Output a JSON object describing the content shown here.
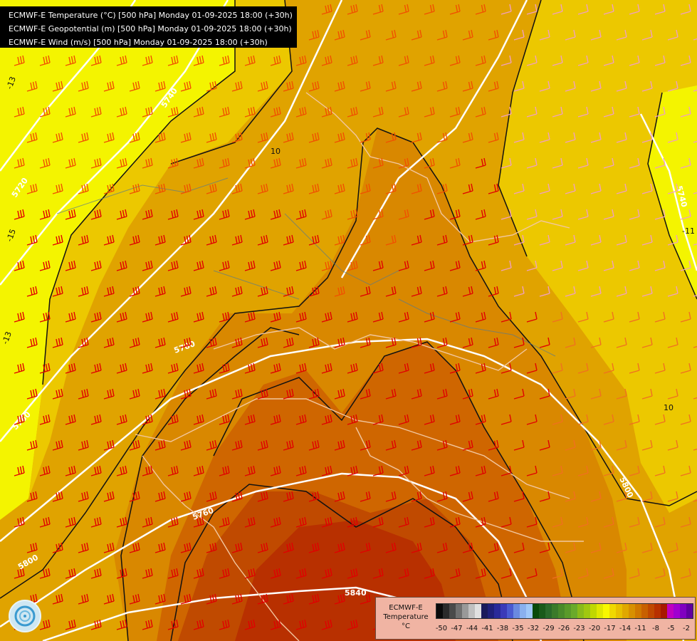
{
  "title_lines": [
    "ECMWF-E Temperature (°C) [500 hPa] Monday 01-09-2025 18:00 (+30h)",
    "ECMWF-E Geopotential (m) [500 hPa] Monday 01-09-2025 18:00 (+30h)",
    "ECMWF-E Wind (m/s) [500 hPa] Monday 01-09-2025 18:00 (+30h)"
  ],
  "geopotential_labels": [
    "5720",
    "5740",
    "5760",
    "5780",
    "5800",
    "5840",
    "5800",
    "5740",
    "5760"
  ],
  "isotherm_labels": [
    "10",
    "10",
    "-13",
    "-15",
    "-11",
    "-13"
  ],
  "legend": {
    "title_line1": "ECMWF-E",
    "title_line2": "Temperature",
    "unit": "°C",
    "tick_labels": [
      "-50",
      "-47",
      "-44",
      "-41",
      "-38",
      "-35",
      "-32",
      "-29",
      "-26",
      "-23",
      "-20",
      "-17",
      "-14",
      "-11",
      "-8",
      "-5",
      "-2"
    ],
    "colors": [
      "#0a0a0a",
      "#2a2a2a",
      "#4a4a4a",
      "#707070",
      "#999999",
      "#c0c0c0",
      "#e0e0e0",
      "#1a1a5a",
      "#20207a",
      "#2a2a9a",
      "#3a3ab8",
      "#4a5ad0",
      "#6a8ae0",
      "#8ab0ee",
      "#a0c8f8",
      "#0a4a0a",
      "#1a5a1a",
      "#2a6a2a",
      "#3a7a2a",
      "#4a8a2a",
      "#5a9a2a",
      "#6aaa2a",
      "#8aba1a",
      "#a0c810",
      "#c0d800",
      "#e0e800",
      "#f8f800",
      "#f0d800",
      "#e8c000",
      "#e0a800",
      "#d89000",
      "#d07800",
      "#c86000",
      "#c04800",
      "#b83000",
      "#a81800",
      "#c000c0",
      "#a000d0",
      "#8000c0",
      "#6000a0"
    ]
  }
}
